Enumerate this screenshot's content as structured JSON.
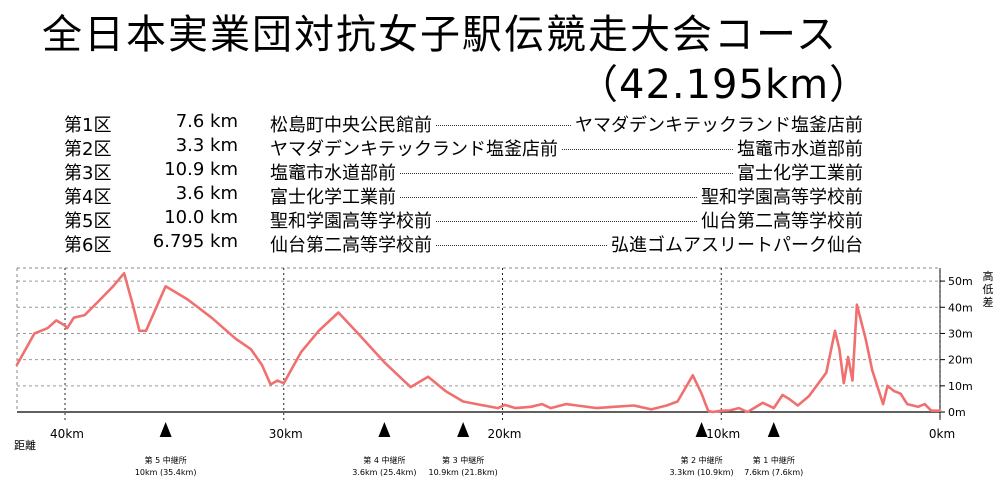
{
  "title": "全日本実業団対抗女子駅伝競走大会コース",
  "subtitle": "（42.195km）",
  "legs": [
    {
      "name": "第1区",
      "distance": "7.6 km",
      "from": "松島町中央公民館前",
      "to": "ヤマダデンキテックランド塩釜店前"
    },
    {
      "name": "第2区",
      "distance": "3.3 km",
      "from": "ヤマダデンキテックランド塩釜店前",
      "to": "塩竈市水道部前"
    },
    {
      "name": "第3区",
      "distance": "10.9 km",
      "from": "塩竈市水道部前",
      "to": "富士化学工業前"
    },
    {
      "name": "第4区",
      "distance": "3.6 km",
      "from": "富士化学工業前",
      "to": "聖和学園高等学校前"
    },
    {
      "name": "第5区",
      "distance": "10.0 km",
      "from": "聖和学園高等学校前",
      "to": "仙台第二高等学校前"
    },
    {
      "name": "第6区",
      "distance": "6.795 km",
      "from": "仙台第二高等学校前",
      "to": "弘進ゴムアスリートパーク仙台"
    }
  ],
  "chart_data": {
    "type": "line",
    "title": "",
    "xlabel": "距離",
    "ylabel": "高低差",
    "xlim": [
      0,
      42.195
    ],
    "ylim": [
      0,
      55
    ],
    "x_reversed": true,
    "x_ticks": [
      {
        "value": 40,
        "label": "40km"
      },
      {
        "value": 30,
        "label": "30km"
      },
      {
        "value": 20,
        "label": "20km"
      },
      {
        "value": 10,
        "label": "10km"
      },
      {
        "value": 0,
        "label": "0km"
      }
    ],
    "y_ticks": [
      {
        "value": 0,
        "label": "0m"
      },
      {
        "value": 10,
        "label": "10m"
      },
      {
        "value": 20,
        "label": "20m"
      },
      {
        "value": 30,
        "label": "30m"
      },
      {
        "value": 40,
        "label": "40m"
      },
      {
        "value": 50,
        "label": "50m"
      }
    ],
    "grid": true,
    "line_color": "#f07070",
    "series": [
      {
        "x": [
          42.2,
          41.4,
          41.1,
          40.8,
          40.4,
          40.0,
          39.9,
          39.6,
          39.1,
          38.5,
          37.8,
          37.3,
          36.9,
          36.6,
          36.3,
          35.4,
          34.4,
          33.3,
          32.2,
          31.5,
          31.0,
          30.6,
          30.3,
          30.0,
          29.6,
          29.2,
          28.4,
          27.5,
          26.6,
          25.4,
          24.2,
          23.4,
          22.6,
          21.8,
          21.0,
          20.2,
          19.9,
          19.4,
          18.7,
          18.2,
          17.8,
          17.1,
          16.6,
          15.7,
          14.9,
          14.0,
          13.2,
          12.5,
          12.0,
          11.3,
          10.9,
          10.6,
          10.4,
          10.0,
          9.6,
          9.2,
          8.8,
          8.1,
          7.6,
          7.2,
          6.9,
          6.5,
          6.0,
          5.2,
          4.8,
          4.6,
          4.4,
          4.2,
          4.0,
          3.8,
          3.4,
          3.1,
          2.6,
          2.4,
          2.1,
          1.8,
          1.5,
          1.0,
          0.7,
          0.4,
          0.0
        ],
        "y": [
          18,
          30,
          31,
          32,
          35,
          33,
          32,
          36,
          37,
          42,
          48,
          53,
          41,
          31,
          31,
          48,
          43,
          36,
          28,
          24,
          18,
          10.5,
          12,
          11,
          17,
          23,
          31,
          38,
          30,
          19,
          9.5,
          13.5,
          8,
          4,
          2.7,
          1.5,
          2.7,
          1.5,
          2,
          3,
          1.5,
          3,
          2.5,
          1.5,
          2,
          2.5,
          1,
          2.5,
          4,
          14,
          7,
          0.5,
          0,
          0.5,
          0.6,
          1.5,
          0,
          3.5,
          1.5,
          6.5,
          5,
          2.5,
          6,
          15,
          31,
          24,
          11,
          21,
          12,
          41,
          28,
          16,
          3,
          10,
          8,
          7,
          3,
          2,
          3,
          0.5,
          0.5
        ]
      }
    ],
    "relay_stations": [
      {
        "km": 35.4,
        "name": "第 5 中継所",
        "detail": "10km (35.4km)"
      },
      {
        "km": 25.4,
        "name": "第 4 中継所",
        "detail": "3.6km (25.4km)"
      },
      {
        "km": 21.8,
        "name": "第 3 中継所",
        "detail": "10.9km (21.8km)"
      },
      {
        "km": 10.9,
        "name": "第 2 中継所",
        "detail": "3.3km (10.9km)"
      },
      {
        "km": 7.6,
        "name": "第 1 中継所",
        "detail": "7.6km (7.6km)"
      }
    ]
  }
}
